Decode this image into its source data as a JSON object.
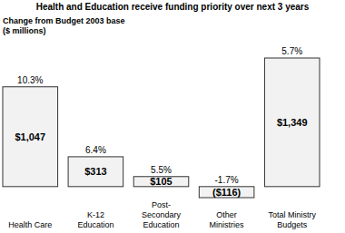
{
  "chart_data": {
    "type": "bar",
    "title": "Health and Education receive funding priority over next 3 years",
    "subtitle": "Change from Budget 2003 base\n($ millions)",
    "categories": [
      "Health Care",
      "K-12\nEducation",
      "Post-\nSecondary\nEducation",
      "Other\nMinistries",
      "Total Ministry\nBudgets"
    ],
    "values": [
      1047,
      313,
      105,
      -116,
      1349
    ],
    "value_labels": [
      "$1,047",
      "$313",
      "$105",
      "($116)",
      "$1,349"
    ],
    "percentages": [
      10.3,
      6.4,
      5.5,
      -1.7,
      5.7
    ],
    "percentage_labels": [
      "10.3%",
      "6.4%",
      "5.5%",
      "-1.7%",
      "5.7%"
    ],
    "color": "#f2f2f2",
    "data_labels": true,
    "tick_labels": "x",
    "grid": false
  }
}
